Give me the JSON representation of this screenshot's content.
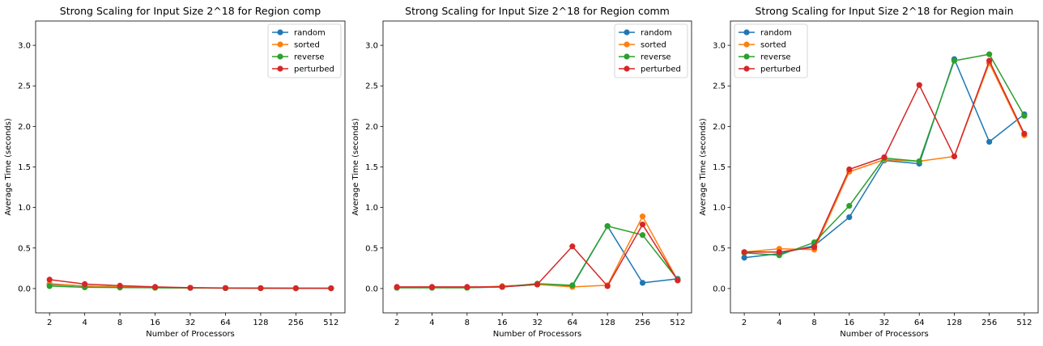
{
  "colors": {
    "random": "#1f77b4",
    "sorted": "#ff7f0e",
    "reverse": "#2ca02c",
    "perturbed": "#d62728"
  },
  "chart_data": [
    {
      "type": "line",
      "title": "Strong Scaling for Input Size 2^18 for Region comp",
      "xlabel": "Number of Processors",
      "ylabel": "Average Time (seconds)",
      "categories": [
        "2",
        "4",
        "8",
        "16",
        "32",
        "64",
        "128",
        "256",
        "512"
      ],
      "ylim": [
        -0.3,
        3.3
      ],
      "yticks": [
        "0.0",
        "0.5",
        "1.0",
        "1.5",
        "2.0",
        "2.5",
        "3.0"
      ],
      "legend": "top-right",
      "series": [
        {
          "name": "random",
          "values": [
            0.05,
            0.03,
            0.02,
            0.01,
            0.008,
            0.005,
            0.004,
            0.003,
            0.003
          ]
        },
        {
          "name": "sorted",
          "values": [
            0.06,
            0.03,
            0.02,
            0.01,
            0.008,
            0.005,
            0.004,
            0.003,
            0.003
          ]
        },
        {
          "name": "reverse",
          "values": [
            0.03,
            0.015,
            0.012,
            0.01,
            0.008,
            0.005,
            0.004,
            0.003,
            0.003
          ]
        },
        {
          "name": "perturbed",
          "values": [
            0.11,
            0.055,
            0.035,
            0.02,
            0.01,
            0.007,
            0.005,
            0.004,
            0.003
          ]
        }
      ]
    },
    {
      "type": "line",
      "title": "Strong Scaling for Input Size 2^18 for Region comm",
      "xlabel": "Number of Processors",
      "ylabel": "Average Time (seconds)",
      "categories": [
        "2",
        "4",
        "8",
        "16",
        "32",
        "64",
        "128",
        "256",
        "512"
      ],
      "ylim": [
        -0.3,
        3.3
      ],
      "yticks": [
        "0.0",
        "0.5",
        "1.0",
        "1.5",
        "2.0",
        "2.5",
        "3.0"
      ],
      "legend": "top-right",
      "series": [
        {
          "name": "random",
          "values": [
            0.01,
            0.01,
            0.01,
            0.02,
            0.05,
            0.03,
            0.77,
            0.07,
            0.12
          ]
        },
        {
          "name": "sorted",
          "values": [
            0.01,
            0.01,
            0.01,
            0.03,
            0.05,
            0.02,
            0.04,
            0.89,
            0.1
          ]
        },
        {
          "name": "reverse",
          "values": [
            0.01,
            0.01,
            0.01,
            0.02,
            0.06,
            0.04,
            0.77,
            0.66,
            0.11
          ]
        },
        {
          "name": "perturbed",
          "values": [
            0.02,
            0.02,
            0.02,
            0.02,
            0.05,
            0.52,
            0.03,
            0.79,
            0.1
          ]
        }
      ]
    },
    {
      "type": "line",
      "title": "Strong Scaling for Input Size 2^18 for Region main",
      "xlabel": "Number of Processors",
      "ylabel": "Average Time (seconds)",
      "categories": [
        "2",
        "4",
        "8",
        "16",
        "32",
        "64",
        "128",
        "256",
        "512"
      ],
      "ylim": [
        -0.3,
        3.3
      ],
      "yticks": [
        "0.0",
        "0.5",
        "1.0",
        "1.5",
        "2.0",
        "2.5",
        "3.0"
      ],
      "legend": "top-left",
      "series": [
        {
          "name": "random",
          "values": [
            0.38,
            0.43,
            0.53,
            0.88,
            1.58,
            1.54,
            2.83,
            1.81,
            2.15
          ]
        },
        {
          "name": "sorted",
          "values": [
            0.45,
            0.49,
            0.48,
            1.44,
            1.59,
            1.57,
            1.63,
            2.78,
            1.89
          ]
        },
        {
          "name": "reverse",
          "values": [
            0.44,
            0.41,
            0.57,
            1.02,
            1.61,
            1.57,
            2.81,
            2.89,
            2.13
          ]
        },
        {
          "name": "perturbed",
          "values": [
            0.45,
            0.45,
            0.51,
            1.47,
            1.62,
            2.51,
            1.63,
            2.81,
            1.91
          ]
        }
      ]
    }
  ]
}
